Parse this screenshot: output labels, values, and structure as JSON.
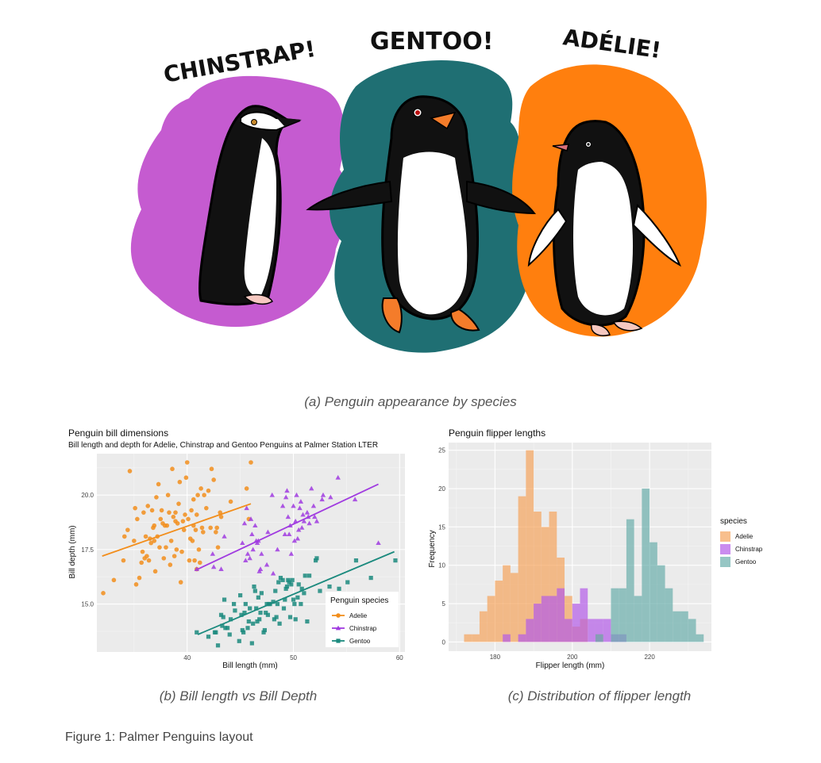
{
  "illustration": {
    "labels": [
      "CHINSTRAP!",
      "GENTOO!",
      "ADÉLIE!"
    ],
    "colors": {
      "chinstrap": "#c55bd0",
      "gentoo": "#1f6f73",
      "adelie": "#ff7f0e"
    }
  },
  "captions": {
    "a": "(a) Penguin appearance by species",
    "b": "(b) Bill length vs Bill Depth",
    "c": "(c) Distribution of flipper length"
  },
  "figure_caption": "Figure 1: Palmer Penguins layout",
  "chart_data": [
    {
      "type": "scatter",
      "title": "Penguin bill dimensions",
      "subtitle": "Bill length and depth for Adelie, Chinstrap and Gentoo Penguins at Palmer Station LTER",
      "xlabel": "Bill length (mm)",
      "ylabel": "Bill depth (mm)",
      "xlim": [
        31.5,
        60.5
      ],
      "ylim": [
        12.8,
        21.9
      ],
      "xticks": [
        40,
        50,
        60
      ],
      "yticks": [
        15.0,
        17.5,
        20.0
      ],
      "ytick_labels": [
        "15.0",
        "17.5",
        "20.0"
      ],
      "grid": true,
      "legend": {
        "title": "Penguin species",
        "position": "bottom-right"
      },
      "series": [
        {
          "name": "Adelie",
          "color": "#f28e1c",
          "marker": "circle",
          "trend": [
            [
              32.0,
              17.2
            ],
            [
              46.0,
              19.6
            ]
          ],
          "points": [
            [
              32.1,
              15.5
            ],
            [
              33.1,
              16.1
            ],
            [
              34.1,
              18.1
            ],
            [
              34.4,
              18.4
            ],
            [
              34.6,
              21.1
            ],
            [
              35.0,
              17.9
            ],
            [
              35.1,
              19.4
            ],
            [
              35.3,
              18.9
            ],
            [
              35.5,
              16.2
            ],
            [
              35.7,
              16.9
            ],
            [
              35.9,
              19.2
            ],
            [
              36.0,
              17.1
            ],
            [
              36.2,
              17.2
            ],
            [
              36.3,
              19.5
            ],
            [
              36.4,
              17.0
            ],
            [
              36.5,
              18.0
            ],
            [
              36.6,
              17.8
            ],
            [
              36.7,
              19.3
            ],
            [
              36.8,
              18.5
            ],
            [
              36.9,
              18.6
            ],
            [
              37.0,
              16.5
            ],
            [
              37.2,
              18.1
            ],
            [
              37.3,
              20.5
            ],
            [
              37.5,
              18.9
            ],
            [
              37.6,
              19.3
            ],
            [
              37.7,
              18.7
            ],
            [
              37.8,
              17.1
            ],
            [
              37.9,
              18.6
            ],
            [
              38.1,
              18.6
            ],
            [
              38.2,
              20.0
            ],
            [
              38.3,
              19.2
            ],
            [
              38.5,
              17.9
            ],
            [
              38.6,
              21.2
            ],
            [
              38.7,
              19.0
            ],
            [
              38.8,
              17.2
            ],
            [
              38.9,
              18.8
            ],
            [
              39.0,
              17.5
            ],
            [
              39.1,
              18.7
            ],
            [
              39.2,
              19.6
            ],
            [
              39.3,
              20.6
            ],
            [
              39.5,
              17.4
            ],
            [
              39.6,
              18.8
            ],
            [
              39.7,
              18.4
            ],
            [
              39.8,
              19.1
            ],
            [
              40.0,
              21.5
            ],
            [
              40.1,
              18.9
            ],
            [
              40.2,
              17.0
            ],
            [
              40.3,
              18.0
            ],
            [
              40.5,
              17.9
            ],
            [
              40.6,
              18.6
            ],
            [
              40.7,
              17.0
            ],
            [
              40.8,
              18.4
            ],
            [
              40.9,
              16.6
            ],
            [
              41.0,
              20.0
            ],
            [
              41.1,
              17.5
            ],
            [
              41.3,
              20.3
            ],
            [
              41.4,
              18.5
            ],
            [
              41.5,
              18.3
            ],
            [
              41.6,
              20.0
            ],
            [
              41.8,
              19.4
            ],
            [
              42.0,
              20.2
            ],
            [
              42.2,
              18.5
            ],
            [
              42.3,
              21.2
            ],
            [
              42.5,
              20.7
            ],
            [
              42.7,
              18.3
            ],
            [
              42.8,
              18.5
            ],
            [
              42.9,
              17.6
            ],
            [
              43.1,
              19.2
            ],
            [
              43.2,
              19.0
            ],
            [
              44.1,
              19.7
            ],
            [
              45.6,
              20.3
            ],
            [
              45.8,
              18.9
            ],
            [
              46.0,
              21.5
            ],
            [
              35.2,
              15.9
            ],
            [
              36.1,
              18.1
            ],
            [
              37.4,
              17.6
            ],
            [
              38.4,
              16.8
            ],
            [
              39.4,
              16.0
            ],
            [
              40.4,
              19.3
            ],
            [
              41.2,
              16.9
            ],
            [
              34.0,
              17.0
            ],
            [
              35.8,
              17.4
            ],
            [
              37.1,
              19.9
            ],
            [
              38.0,
              17.6
            ],
            [
              39.9,
              20.8
            ],
            [
              40.6,
              19.8
            ],
            [
              36.9,
              17.9
            ],
            [
              38.9,
              19.2
            ],
            [
              40.9,
              19.1
            ]
          ]
        },
        {
          "name": "Chinstrap",
          "color": "#a03be0",
          "marker": "triangle",
          "trend": [
            [
              41.0,
              16.6
            ],
            [
              58.0,
              20.5
            ]
          ],
          "points": [
            [
              40.9,
              16.6
            ],
            [
              42.4,
              17.3
            ],
            [
              42.5,
              16.7
            ],
            [
              43.2,
              16.6
            ],
            [
              43.5,
              18.1
            ],
            [
              45.2,
              17.8
            ],
            [
              45.4,
              18.7
            ],
            [
              45.5,
              17.0
            ],
            [
              45.6,
              19.4
            ],
            [
              45.7,
              17.3
            ],
            [
              45.9,
              17.1
            ],
            [
              46.0,
              18.9
            ],
            [
              46.1,
              18.2
            ],
            [
              46.2,
              17.5
            ],
            [
              46.4,
              18.6
            ],
            [
              46.5,
              17.9
            ],
            [
              46.6,
              17.8
            ],
            [
              46.7,
              17.9
            ],
            [
              46.8,
              16.5
            ],
            [
              46.9,
              16.6
            ],
            [
              47.0,
              17.3
            ],
            [
              47.5,
              16.8
            ],
            [
              47.6,
              18.3
            ],
            [
              48.1,
              16.4
            ],
            [
              48.5,
              17.5
            ],
            [
              49.0,
              19.5
            ],
            [
              49.2,
              18.2
            ],
            [
              49.3,
              19.9
            ],
            [
              49.5,
              19.0
            ],
            [
              49.6,
              18.2
            ],
            [
              49.7,
              18.6
            ],
            [
              49.8,
              17.3
            ],
            [
              50.0,
              19.5
            ],
            [
              50.1,
              17.9
            ],
            [
              50.2,
              18.8
            ],
            [
              50.3,
              20.0
            ],
            [
              50.5,
              18.4
            ],
            [
              50.6,
              19.4
            ],
            [
              50.7,
              19.7
            ],
            [
              50.8,
              18.5
            ],
            [
              50.9,
              19.1
            ],
            [
              51.0,
              18.8
            ],
            [
              51.3,
              19.2
            ],
            [
              51.4,
              19.0
            ],
            [
              51.5,
              18.7
            ],
            [
              51.7,
              20.3
            ],
            [
              51.9,
              19.5
            ],
            [
              52.0,
              19.0
            ],
            [
              52.2,
              18.8
            ],
            [
              52.7,
              19.8
            ],
            [
              52.8,
              20.0
            ],
            [
              53.5,
              19.9
            ],
            [
              54.2,
              20.8
            ],
            [
              55.8,
              19.8
            ],
            [
              58.0,
              17.8
            ],
            [
              49.4,
              20.2
            ],
            [
              50.4,
              18.0
            ],
            [
              48.0,
              20.0
            ]
          ]
        },
        {
          "name": "Gentoo",
          "color": "#1b8a7e",
          "marker": "square",
          "trend": [
            [
              41.0,
              13.6
            ],
            [
              59.5,
              17.4
            ]
          ],
          "points": [
            [
              40.9,
              13.7
            ],
            [
              42.0,
              13.5
            ],
            [
              42.6,
              13.7
            ],
            [
              42.7,
              13.7
            ],
            [
              42.9,
              13.1
            ],
            [
              43.2,
              14.5
            ],
            [
              43.3,
              14.0
            ],
            [
              43.4,
              14.4
            ],
            [
              43.5,
              15.2
            ],
            [
              43.6,
              13.9
            ],
            [
              43.8,
              13.9
            ],
            [
              44.0,
              13.6
            ],
            [
              44.4,
              15.0
            ],
            [
              44.5,
              14.7
            ],
            [
              44.9,
              13.3
            ],
            [
              45.0,
              15.4
            ],
            [
              45.1,
              14.5
            ],
            [
              45.2,
              13.8
            ],
            [
              45.3,
              13.7
            ],
            [
              45.4,
              14.6
            ],
            [
              45.5,
              15.0
            ],
            [
              45.7,
              13.9
            ],
            [
              45.8,
              14.2
            ],
            [
              46.1,
              13.2
            ],
            [
              46.2,
              14.1
            ],
            [
              46.3,
              15.8
            ],
            [
              46.4,
              15.6
            ],
            [
              46.5,
              14.8
            ],
            [
              46.6,
              14.2
            ],
            [
              46.7,
              15.3
            ],
            [
              46.8,
              14.3
            ],
            [
              46.9,
              14.6
            ],
            [
              47.2,
              13.7
            ],
            [
              47.3,
              13.8
            ],
            [
              47.4,
              14.6
            ],
            [
              47.5,
              15.0
            ],
            [
              47.6,
              14.5
            ],
            [
              47.7,
              15.0
            ],
            [
              47.8,
              15.0
            ],
            [
              48.1,
              15.1
            ],
            [
              48.2,
              14.3
            ],
            [
              48.4,
              14.4
            ],
            [
              48.5,
              15.0
            ],
            [
              48.6,
              16.0
            ],
            [
              48.7,
              14.1
            ],
            [
              48.8,
              16.2
            ],
            [
              49.0,
              16.1
            ],
            [
              49.1,
              14.8
            ],
            [
              49.2,
              15.2
            ],
            [
              49.3,
              15.7
            ],
            [
              49.4,
              15.8
            ],
            [
              49.5,
              16.1
            ],
            [
              49.6,
              16.0
            ],
            [
              49.8,
              15.9
            ],
            [
              49.9,
              16.1
            ],
            [
              50.0,
              15.2
            ],
            [
              50.1,
              15.0
            ],
            [
              50.2,
              14.3
            ],
            [
              50.4,
              15.3
            ],
            [
              50.5,
              15.9
            ],
            [
              50.7,
              15.0
            ],
            [
              50.8,
              15.7
            ],
            [
              51.1,
              16.3
            ],
            [
              51.3,
              14.2
            ],
            [
              51.5,
              16.3
            ],
            [
              52.1,
              17.0
            ],
            [
              52.2,
              17.1
            ],
            [
              52.5,
              15.6
            ],
            [
              53.4,
              15.8
            ],
            [
              54.3,
              15.7
            ],
            [
              55.1,
              16.0
            ],
            [
              55.9,
              17.0
            ],
            [
              57.3,
              16.2
            ],
            [
              59.6,
              17.0
            ],
            [
              44.1,
              14.3
            ],
            [
              45.9,
              14.8
            ],
            [
              47.0,
              15.5
            ],
            [
              48.3,
              15.6
            ],
            [
              49.7,
              14.4
            ],
            [
              51.0,
              15.5
            ]
          ]
        }
      ]
    },
    {
      "type": "histogram",
      "title": "Penguin flipper lengths",
      "xlabel": "Flipper length (mm)",
      "ylabel": "Frequency",
      "xlim": [
        168,
        236
      ],
      "ylim": [
        -1.2,
        26
      ],
      "xticks": [
        180,
        200,
        220
      ],
      "yticks": [
        0,
        5,
        10,
        15,
        20,
        25
      ],
      "bin_width": 2,
      "bin_start": 172,
      "grid": true,
      "legend": {
        "title": "species",
        "position": "right"
      },
      "series": [
        {
          "name": "Adelie",
          "color": "#f5a45c",
          "counts": [
            1,
            1,
            4,
            6,
            8,
            10,
            9,
            19,
            25,
            17,
            15,
            17,
            11,
            6,
            2,
            3,
            0,
            1,
            0,
            0,
            0,
            0,
            0,
            0,
            0,
            0,
            0,
            0,
            0,
            0,
            0
          ]
        },
        {
          "name": "Chinstrap",
          "color": "#b45be8",
          "counts": [
            0,
            0,
            0,
            0,
            0,
            1,
            0,
            1,
            3,
            5,
            6,
            6,
            7,
            3,
            5,
            7,
            3,
            3,
            3,
            1,
            1,
            0,
            0,
            0,
            0,
            0,
            0,
            0,
            0,
            0,
            0
          ]
        },
        {
          "name": "Gentoo",
          "color": "#6aaeab",
          "counts": [
            0,
            0,
            0,
            0,
            0,
            0,
            0,
            0,
            0,
            0,
            0,
            0,
            0,
            0,
            0,
            0,
            0,
            1,
            0,
            7,
            7,
            16,
            6,
            20,
            13,
            10,
            7,
            4,
            4,
            3,
            1
          ]
        }
      ]
    }
  ]
}
